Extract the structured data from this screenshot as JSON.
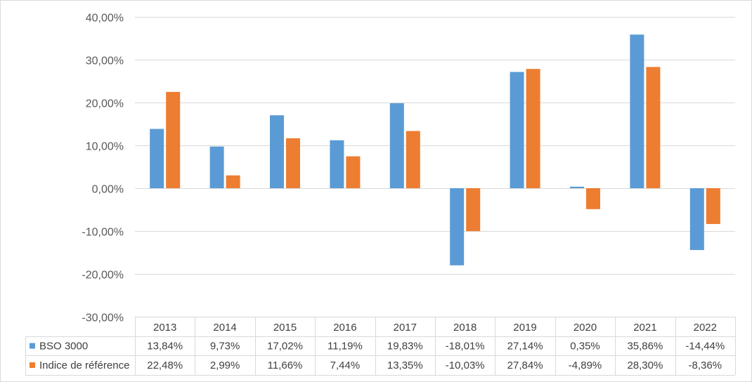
{
  "chart_data": {
    "type": "bar",
    "categories": [
      "2013",
      "2014",
      "2015",
      "2016",
      "2017",
      "2018",
      "2019",
      "2020",
      "2021",
      "2022"
    ],
    "series": [
      {
        "name": "BSO 3000",
        "values": [
          13.84,
          9.73,
          17.02,
          11.19,
          19.83,
          -18.01,
          27.14,
          0.35,
          35.86,
          -14.44
        ],
        "labels": [
          "13,84%",
          "9,73%",
          "17,02%",
          "11,19%",
          "19,83%",
          "-18,01%",
          "27,14%",
          "0,35%",
          "35,86%",
          "-14,44%"
        ],
        "color": "#5B9BD5"
      },
      {
        "name": "Indice de référence",
        "values": [
          22.48,
          2.99,
          11.66,
          7.44,
          13.35,
          -10.03,
          27.84,
          -4.89,
          28.3,
          -8.36
        ],
        "labels": [
          "22,48%",
          "2,99%",
          "11,66%",
          "7,44%",
          "13,35%",
          "-10,03%",
          "27,84%",
          "-4,89%",
          "28,30%",
          "-8,36%"
        ],
        "color": "#ED7D31"
      }
    ],
    "yticks": [
      40,
      30,
      20,
      10,
      0,
      -10,
      -20,
      -30
    ],
    "ytick_labels": [
      "40,00%",
      "30,00%",
      "20,00%",
      "10,00%",
      "0,00%",
      "-10,00%",
      "-20,00%",
      "-30,00%"
    ],
    "ylim": [
      -30,
      40
    ],
    "grid": true,
    "legend": "data-table",
    "title": "",
    "xlabel": "",
    "ylabel": ""
  }
}
